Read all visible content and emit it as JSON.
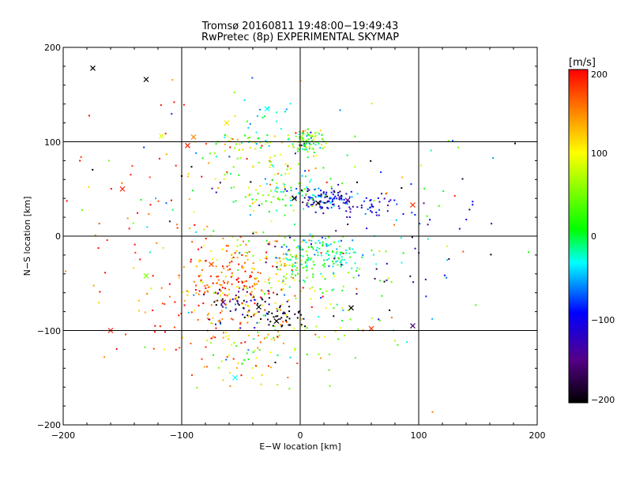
{
  "chart_data": {
    "type": "scatter",
    "title": "Tromsø 20160811 19:48:00−19:49:43",
    "subtitle": "RwPretec (8p) EXPERIMENTAL SKYMAP",
    "xlabel": "E−W location [km]",
    "ylabel": "N−S location [km]",
    "xlim": [
      -200,
      200
    ],
    "ylim": [
      -200,
      200
    ],
    "x_ticks": [
      "−200",
      "−100",
      "0",
      "100",
      "200"
    ],
    "y_ticks": [
      "200",
      "100",
      "0",
      "−100",
      "−200"
    ],
    "grid": true,
    "colorbar": {
      "unit": "[m/s]",
      "min": -200,
      "max": 200,
      "ticks": [
        "200",
        "100",
        "0",
        "−100",
        "−200"
      ],
      "colormap": "rainbow (black-purple-blue-cyan-green-yellow-orange-red)"
    },
    "clusters": [
      {
        "cx": 5,
        "cy": 100,
        "sx": 8,
        "sy": 6,
        "n": 90,
        "v": 40,
        "vs": 80
      },
      {
        "cx": -45,
        "cy": 100,
        "sx": 15,
        "sy": 6,
        "n": 40,
        "v": 60,
        "vs": 70
      },
      {
        "cx": -25,
        "cy": 130,
        "sx": 10,
        "sy": 8,
        "n": 15,
        "v": -40,
        "vs": 30
      },
      {
        "cx": 20,
        "cy": 40,
        "sx": 12,
        "sy": 6,
        "n": 110,
        "v": -110,
        "vs": 40
      },
      {
        "cx": 55,
        "cy": 30,
        "sx": 20,
        "sy": 7,
        "n": 45,
        "v": -110,
        "vs": 30
      },
      {
        "cx": -10,
        "cy": 45,
        "sx": 18,
        "sy": 12,
        "n": 70,
        "v": 20,
        "vs": 40
      },
      {
        "cx": 25,
        "cy": -20,
        "sx": 14,
        "sy": 10,
        "n": 110,
        "v": -20,
        "vs": 25
      },
      {
        "cx": -5,
        "cy": -30,
        "sx": 12,
        "sy": 18,
        "n": 80,
        "v": 30,
        "vs": 50
      },
      {
        "cx": -50,
        "cy": -40,
        "sx": 22,
        "sy": 22,
        "n": 200,
        "v": 150,
        "vs": 50
      },
      {
        "cx": -45,
        "cy": -75,
        "sx": 18,
        "sy": 10,
        "n": 60,
        "v": -150,
        "vs": 40
      },
      {
        "cx": -15,
        "cy": -85,
        "sx": 12,
        "sy": 8,
        "n": 35,
        "v": -200,
        "vs": 15
      },
      {
        "cx": -80,
        "cy": -80,
        "sx": 25,
        "sy": 25,
        "n": 80,
        "v": 170,
        "vs": 40
      },
      {
        "cx": -40,
        "cy": -120,
        "sx": 25,
        "sy": 25,
        "n": 60,
        "v": 100,
        "vs": 60
      },
      {
        "cx": 20,
        "cy": -80,
        "sx": 30,
        "sy": 30,
        "n": 60,
        "v": 60,
        "vs": 60
      },
      {
        "cx": -30,
        "cy": 70,
        "sx": 30,
        "sy": 20,
        "n": 60,
        "v": 60,
        "vs": 70
      },
      {
        "cx": -120,
        "cy": 10,
        "sx": 45,
        "sy": 70,
        "n": 70,
        "v": 170,
        "vs": 40
      },
      {
        "cx": 90,
        "cy": 0,
        "sx": 40,
        "sy": 40,
        "n": 45,
        "v": -100,
        "vs": 50
      },
      {
        "cx": 0,
        "cy": 0,
        "sx": 80,
        "sy": 80,
        "n": 160,
        "v": 0,
        "vs": 120
      }
    ],
    "markers": [
      {
        "x": -130,
        "y": 166,
        "v": -200
      },
      {
        "x": -175,
        "y": 178,
        "v": -200
      },
      {
        "x": -90,
        "y": 105,
        "v": 150
      },
      {
        "x": -62,
        "y": 120,
        "v": 110
      },
      {
        "x": -28,
        "y": 135,
        "v": -40
      },
      {
        "x": -150,
        "y": 50,
        "v": 190
      },
      {
        "x": -117,
        "y": 106,
        "v": 90
      },
      {
        "x": -65,
        "y": -70,
        "v": -150
      },
      {
        "x": -35,
        "y": -75,
        "v": -200
      },
      {
        "x": -20,
        "y": -90,
        "v": -200
      },
      {
        "x": 43,
        "y": -76,
        "v": -200
      },
      {
        "x": 95,
        "y": -95,
        "v": -160
      },
      {
        "x": 95,
        "y": 33,
        "v": 180
      },
      {
        "x": -160,
        "y": -100,
        "v": 190
      },
      {
        "x": -130,
        "y": -42,
        "v": 50
      },
      {
        "x": -55,
        "y": -150,
        "v": -40
      },
      {
        "x": 60,
        "y": -98,
        "v": 180
      },
      {
        "x": 15,
        "y": 35,
        "v": -200
      },
      {
        "x": 40,
        "y": 38,
        "v": -150
      },
      {
        "x": -75,
        "y": -30,
        "v": 170
      },
      {
        "x": -95,
        "y": 96,
        "v": 190
      },
      {
        "x": -5,
        "y": 40,
        "v": -200
      }
    ]
  }
}
